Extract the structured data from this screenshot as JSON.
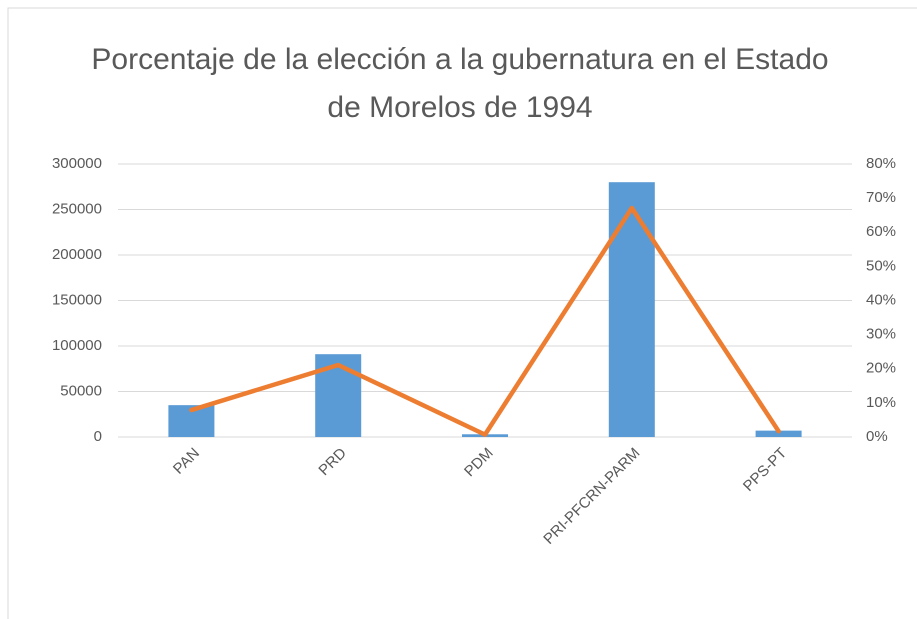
{
  "chart_data": {
    "type": "bar",
    "title": "Porcentaje de la elección a la gubernatura en el Estado de Morelos de 1994",
    "categories": [
      "PAN",
      "PRD",
      "PDM",
      "PRI-PFCRN-PARM",
      "PPS-PT"
    ],
    "series": [
      {
        "type": "bar",
        "color": "#5b9bd5",
        "values": [
          35000,
          91000,
          3000,
          280000,
          7000
        ]
      },
      {
        "type": "line",
        "color": "#ed7d31",
        "axis": "y2",
        "values": [
          7.9,
          21.1,
          0.7,
          67.1,
          1.7
        ]
      }
    ],
    "ylim": [
      0,
      300000
    ],
    "yticks": [
      0,
      50000,
      100000,
      150000,
      200000,
      250000,
      300000
    ],
    "y2lim": [
      0,
      80
    ],
    "y2ticks": [
      {
        "value": 0,
        "label": "0%"
      },
      {
        "value": 10,
        "label": "10%"
      },
      {
        "value": 20,
        "label": "20%"
      },
      {
        "value": 30,
        "label": "30%"
      },
      {
        "value": 40,
        "label": "40%"
      },
      {
        "value": 50,
        "label": "50%"
      },
      {
        "value": 60,
        "label": "60%"
      },
      {
        "value": 70,
        "label": "70%"
      },
      {
        "value": 80,
        "label": "80%"
      }
    ],
    "grid": true
  }
}
